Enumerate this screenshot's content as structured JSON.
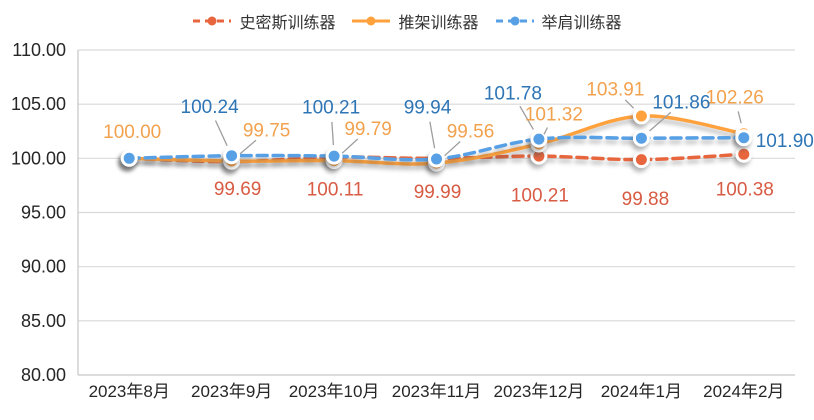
{
  "chart_data": {
    "type": "line",
    "title": "",
    "categories": [
      "2023年8月",
      "2023年9月",
      "2023年10月",
      "2023年11月",
      "2023年12月",
      "2024年1月",
      "2024年2月"
    ],
    "y_ticks": [
      110,
      105,
      100,
      95,
      90,
      85,
      80
    ],
    "y_tick_labels": [
      "110.00",
      "105.00",
      "100.00",
      "95.00",
      "90.00",
      "85.00",
      "80.00"
    ],
    "ylim": [
      80,
      110
    ],
    "grid": true,
    "legend_position": "top",
    "colors": {
      "grid": "#D9D9D9",
      "axis": "#C6C6C6",
      "leader": "#9E9E9E",
      "marker_ring": "#FFFFFF"
    },
    "series": [
      {
        "id": "smith",
        "name": "史密斯训练器",
        "color": "#E8663E",
        "label_color": "#D85B43",
        "dashed": true,
        "smooth": true,
        "values": [
          100.0,
          99.69,
          100.11,
          99.99,
          100.21,
          99.88,
          100.38
        ],
        "label_texts": [
          null,
          "99.69",
          "100.11",
          "99.99",
          "100.21",
          "99.88",
          "100.38"
        ],
        "label_layout": [
          null,
          [
            6,
            28,
            0
          ],
          [
            1,
            33,
            0
          ],
          [
            1,
            34,
            0
          ],
          [
            1,
            40,
            0
          ],
          [
            4,
            40,
            0
          ],
          [
            1,
            36,
            0
          ]
        ]
      },
      {
        "id": "rack",
        "name": "推架训练器",
        "color": "#FFA23E",
        "label_color": "#F2A24E",
        "dashed": false,
        "smooth": true,
        "values": [
          100.0,
          99.75,
          99.79,
          99.56,
          101.32,
          103.91,
          102.26
        ],
        "label_texts": [
          "100.00",
          "99.75",
          "99.79",
          "99.56",
          "101.32",
          "103.91",
          "102.26"
        ],
        "label_layout": [
          [
            3,
            -26,
            0
          ],
          [
            35,
            -30,
            1
          ],
          [
            34,
            -31,
            1
          ],
          [
            34,
            -31,
            1
          ],
          [
            15,
            -29,
            1
          ],
          [
            -26,
            -26,
            1
          ],
          [
            -9,
            -36,
            1
          ]
        ]
      },
      {
        "id": "shoulder",
        "name": "举肩训练器",
        "color": "#57A0E5",
        "label_color": "#2E75B6",
        "dashed": true,
        "smooth": true,
        "values": [
          100.0,
          100.24,
          100.21,
          99.94,
          101.78,
          101.86,
          101.9
        ],
        "label_texts": [
          null,
          "100.24",
          "100.21",
          "99.94",
          "101.78",
          "101.86",
          "101.90"
        ],
        "label_layout": [
          null,
          [
            -22,
            -48,
            1
          ],
          [
            -3,
            -48,
            1
          ],
          [
            -9,
            -51,
            1
          ],
          [
            -26,
            -45,
            1
          ],
          [
            40,
            -35,
            1
          ],
          [
            41,
            4,
            0
          ]
        ]
      }
    ]
  }
}
